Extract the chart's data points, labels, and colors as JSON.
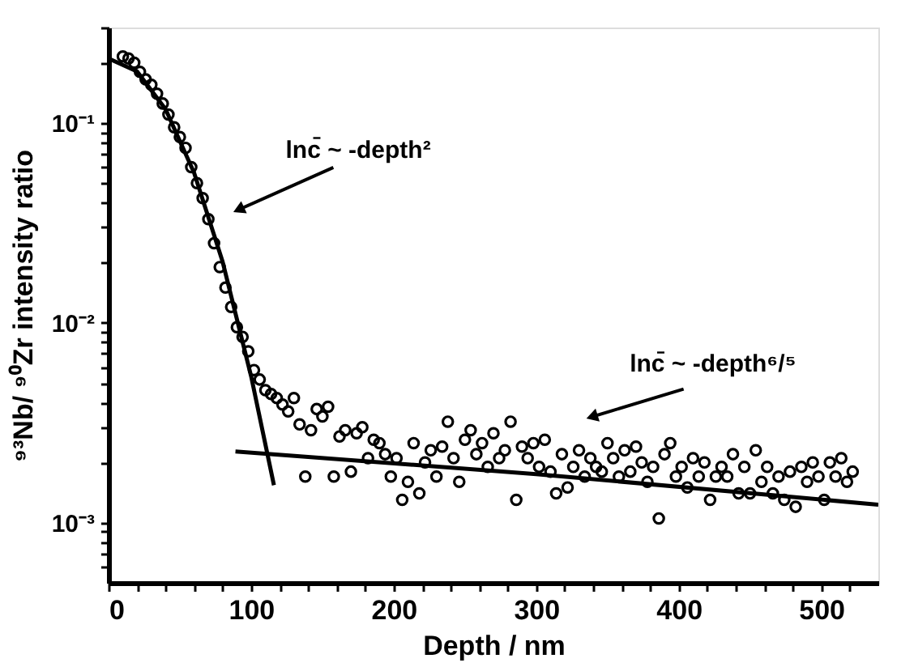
{
  "chart_data": {
    "type": "scatter",
    "xlabel": "Depth / nm",
    "ylabel": "⁹³Nb/ ⁹⁰Zr   intensity ratio",
    "log": "y",
    "grid": false,
    "xlim": [
      0,
      540
    ],
    "ylim": [
      0.0005,
      0.3
    ],
    "xticks": [
      0,
      {
        "value": 20,
        "label": null
      },
      {
        "value": 40,
        "label": null
      },
      {
        "value": 60,
        "label": null
      },
      {
        "value": 80,
        "label": null
      },
      100,
      {
        "value": 120,
        "label": null
      },
      {
        "value": 140,
        "label": null
      },
      {
        "value": 160,
        "label": null
      },
      {
        "value": 180,
        "label": null
      },
      200,
      {
        "value": 220,
        "label": null
      },
      {
        "value": 240,
        "label": null
      },
      {
        "value": 260,
        "label": null
      },
      {
        "value": 280,
        "label": null
      },
      300,
      {
        "value": 320,
        "label": null
      },
      {
        "value": 340,
        "label": null
      },
      {
        "value": 360,
        "label": null
      },
      {
        "value": 380,
        "label": null
      },
      400,
      {
        "value": 420,
        "label": null
      },
      {
        "value": 440,
        "label": null
      },
      {
        "value": 460,
        "label": null
      },
      {
        "value": 480,
        "label": null
      },
      500,
      {
        "value": 520,
        "label": null
      }
    ],
    "yticks": [
      {
        "value": 0.0006,
        "label": null
      },
      {
        "value": 0.0007,
        "label": null
      },
      {
        "value": 0.0008,
        "label": null
      },
      {
        "value": 0.0009,
        "label": null
      },
      {
        "value": 0.001,
        "label": "10⁻³"
      },
      {
        "value": 0.002,
        "label": null
      },
      {
        "value": 0.003,
        "label": null
      },
      {
        "value": 0.004,
        "label": null
      },
      {
        "value": 0.005,
        "label": null
      },
      {
        "value": 0.006,
        "label": null
      },
      {
        "value": 0.007,
        "label": null
      },
      {
        "value": 0.008,
        "label": null
      },
      {
        "value": 0.009,
        "label": null
      },
      {
        "value": 0.01,
        "label": "10⁻²"
      },
      {
        "value": 0.02,
        "label": null
      },
      {
        "value": 0.03,
        "label": null
      },
      {
        "value": 0.04,
        "label": null
      },
      {
        "value": 0.05,
        "label": null
      },
      {
        "value": 0.06,
        "label": null
      },
      {
        "value": 0.07,
        "label": null
      },
      {
        "value": 0.08,
        "label": null
      },
      {
        "value": 0.09,
        "label": null
      },
      {
        "value": 0.1,
        "label": "10⁻¹"
      },
      {
        "value": 0.2,
        "label": null
      },
      {
        "value": 0.3,
        "label": null
      }
    ],
    "annotations": [
      "lnc̄ ~ -depth²",
      "lnc̄ ~ -depth⁶/⁵"
    ],
    "series": [
      {
        "marker": "circle",
        "color": "#000000",
        "x": [
          10,
          14,
          18,
          22,
          26,
          30,
          34,
          38,
          42,
          46,
          50,
          54,
          58,
          62,
          66,
          70,
          74,
          78,
          82,
          86,
          90,
          94,
          98,
          102,
          106,
          110,
          114,
          118,
          122,
          126,
          130,
          134,
          138,
          142,
          146,
          150,
          154,
          158,
          162,
          166,
          170,
          174,
          178,
          182,
          186,
          190,
          194,
          198,
          202,
          206,
          210,
          214,
          218,
          222,
          226,
          230,
          234,
          238,
          242,
          246,
          250,
          254,
          258,
          262,
          266,
          270,
          274,
          278,
          282,
          286,
          290,
          294,
          298,
          302,
          306,
          310,
          314,
          318,
          322,
          326,
          330,
          334,
          338,
          342,
          346,
          350,
          354,
          358,
          362,
          366,
          370,
          374,
          378,
          382,
          386,
          390,
          394,
          398,
          402,
          406,
          410,
          414,
          418,
          422,
          426,
          430,
          434,
          438,
          442,
          446,
          450,
          454,
          458,
          462,
          466,
          470,
          474,
          478,
          482,
          486,
          490,
          494,
          498,
          502,
          506,
          510,
          514,
          518,
          522
        ],
        "values": [
          0.215,
          0.21,
          0.2,
          0.18,
          0.165,
          0.155,
          0.14,
          0.125,
          0.11,
          0.095,
          0.085,
          0.075,
          0.06,
          0.05,
          0.042,
          0.033,
          0.025,
          0.019,
          0.015,
          0.012,
          0.0095,
          0.0085,
          0.0072,
          0.0058,
          0.0052,
          0.0046,
          0.0044,
          0.0042,
          0.0039,
          0.0036,
          0.0042,
          0.0031,
          0.0017,
          0.0029,
          0.0037,
          0.0034,
          0.0038,
          0.0017,
          0.0027,
          0.0029,
          0.0018,
          0.0028,
          0.003,
          0.0021,
          0.0026,
          0.0025,
          0.0022,
          0.0017,
          0.0021,
          0.0013,
          0.0016,
          0.0025,
          0.0014,
          0.002,
          0.0023,
          0.0017,
          0.0024,
          0.0032,
          0.0021,
          0.0016,
          0.0026,
          0.0029,
          0.0022,
          0.0025,
          0.0019,
          0.0028,
          0.0021,
          0.0023,
          0.0032,
          0.0013,
          0.0024,
          0.0021,
          0.0025,
          0.0019,
          0.0026,
          0.0018,
          0.0014,
          0.0022,
          0.0015,
          0.0019,
          0.0023,
          0.0017,
          0.0021,
          0.0019,
          0.0018,
          0.0025,
          0.0021,
          0.0017,
          0.0023,
          0.0018,
          0.0024,
          0.002,
          0.0016,
          0.0019,
          0.00105,
          0.0022,
          0.0025,
          0.0017,
          0.0019,
          0.0015,
          0.0021,
          0.0017,
          0.002,
          0.0013,
          0.0017,
          0.0019,
          0.0017,
          0.0022,
          0.0014,
          0.0019,
          0.0014,
          0.0023,
          0.0016,
          0.0019,
          0.0014,
          0.0017,
          0.0013,
          0.0018,
          0.0012,
          0.0019,
          0.0016,
          0.002,
          0.0017,
          0.0013,
          0.002,
          0.0017,
          0.0021,
          0.0016,
          0.0018
        ]
      },
      {
        "type": "line",
        "line_style": "solid",
        "color": "#000000",
        "x": [
          0,
          20,
          40,
          60,
          80,
          100,
          116
        ],
        "values": [
          0.21,
          0.181,
          0.117,
          0.0563,
          0.0202,
          0.0054,
          0.00154
        ]
      },
      {
        "type": "line",
        "line_style": "solid",
        "color": "#000000",
        "x": [
          89,
          300,
          540
        ],
        "values": [
          0.00227,
          0.00175,
          0.00123
        ]
      }
    ]
  }
}
